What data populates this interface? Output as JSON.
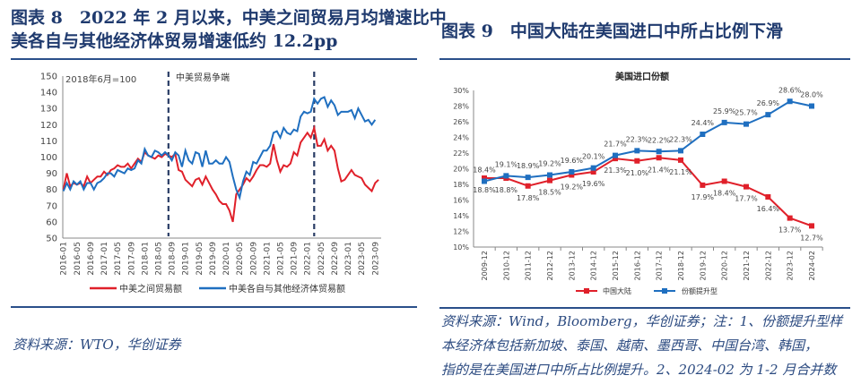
{
  "left": {
    "title_line1": "图表 8　2022 年 2 月以来，中美之间贸易月均增速比中",
    "title_line2": "美各自与其他经济体贸易增速低约 12.2pp",
    "source": "资料来源：WTO，华创证券"
  },
  "right": {
    "title": "图表 9　中国大陆在美国进口中所占比例下滑",
    "source_line1": "资料来源：Wind，Bloomberg，华创证券；注：1、份额提升型样",
    "source_line2": "本经济体包括新加坡、泰国、越南、墨西哥、中国台湾、韩国，",
    "source_line3": "指的是在美国进口中所占比例提升。2、2024-02 为 1-2 月合并数"
  },
  "chart_data": [
    {
      "type": "line",
      "annotation_base": "2018年6月=100",
      "annotation_event": "中美贸易争端",
      "event_lines": [
        "2018-08",
        "2022-03"
      ],
      "ylim": [
        50,
        150
      ],
      "yticks": [
        50,
        60,
        70,
        80,
        90,
        100,
        110,
        120,
        130,
        140,
        150
      ],
      "start": "2016-01",
      "xtick_labels": [
        "2016-01",
        "2016-05",
        "2016-09",
        "2017-01",
        "2017-05",
        "2017-09",
        "2018-01",
        "2018-05",
        "2018-09",
        "2019-01",
        "2019-05",
        "2019-09",
        "2020-01",
        "2020-05",
        "2020-09",
        "2021-01",
        "2021-05",
        "2021-09",
        "2022-01",
        "2022-05",
        "2022-09",
        "2023-01",
        "2023-05",
        "2023-09"
      ],
      "legend_position": "bottom",
      "series": [
        {
          "name": "中美之间贸易额",
          "color": "#e0202a",
          "values": [
            80,
            90,
            82,
            84,
            83,
            84,
            82,
            88,
            84,
            86,
            88,
            88,
            91,
            89,
            92,
            93,
            95,
            94,
            94,
            96,
            93,
            96,
            99,
            97,
            103,
            101,
            100,
            99,
            101,
            100,
            102,
            101,
            100,
            102,
            92,
            91,
            86,
            84,
            82,
            86,
            87,
            83,
            88,
            84,
            80,
            77,
            73,
            71,
            71,
            67,
            60,
            77,
            80,
            83,
            87,
            85,
            88,
            92,
            95,
            95,
            94,
            96,
            108,
            98,
            91,
            95,
            94,
            96,
            103,
            101,
            109,
            112,
            115,
            112,
            118,
            107,
            107,
            111,
            104,
            107,
            104,
            93,
            85,
            86,
            89,
            92,
            89,
            88,
            87,
            83,
            81,
            79,
            84,
            86
          ]
        },
        {
          "name": "中美各自与其他经济体贸易额",
          "color": "#1f6fc0",
          "values": [
            79,
            84,
            80,
            85,
            83,
            85,
            80,
            84,
            84,
            80,
            84,
            85,
            87,
            90,
            90,
            88,
            92,
            91,
            90,
            93,
            92,
            93,
            98,
            96,
            105,
            101,
            100,
            104,
            103,
            101,
            103,
            101,
            98,
            103,
            101,
            94,
            104,
            98,
            96,
            103,
            102,
            94,
            104,
            96,
            96,
            98,
            96,
            96,
            100,
            97,
            88,
            80,
            75,
            85,
            91,
            89,
            97,
            96,
            100,
            104,
            104,
            107,
            115,
            116,
            112,
            118,
            115,
            114,
            117,
            116,
            125,
            128,
            127,
            128,
            136,
            133,
            136,
            137,
            131,
            135,
            132,
            126,
            128,
            128,
            128,
            129,
            124,
            130,
            126,
            122,
            123,
            120,
            123
          ]
        }
      ]
    },
    {
      "type": "line",
      "title": "美国进口份额",
      "ylim": [
        10,
        30
      ],
      "yticks": [
        "10%",
        "12%",
        "14%",
        "16%",
        "18%",
        "20%",
        "22%",
        "24%",
        "26%",
        "28%",
        "30%"
      ],
      "categories": [
        "2009-12",
        "2010-12",
        "2011-12",
        "2012-12",
        "2013-12",
        "2014-12",
        "2015-12",
        "2016-12",
        "2017-12",
        "2018-12",
        "2019-12",
        "2020-12",
        "2021-12",
        "2022-12",
        "2023-12",
        "2024-02"
      ],
      "legend_position": "bottom",
      "series": [
        {
          "name": "中国大陆",
          "color": "#e0202a",
          "values": [
            18.8,
            18.8,
            17.8,
            18.5,
            19.2,
            19.6,
            21.3,
            21.0,
            21.4,
            21.1,
            17.9,
            18.4,
            17.7,
            16.4,
            13.7,
            12.7
          ]
        },
        {
          "name": "份额提升型",
          "color": "#1f6fc0",
          "values": [
            18.4,
            19.1,
            18.9,
            19.2,
            19.6,
            20.1,
            21.7,
            22.3,
            22.2,
            22.3,
            24.4,
            25.9,
            25.7,
            26.9,
            28.6,
            28.0
          ]
        }
      ]
    }
  ]
}
